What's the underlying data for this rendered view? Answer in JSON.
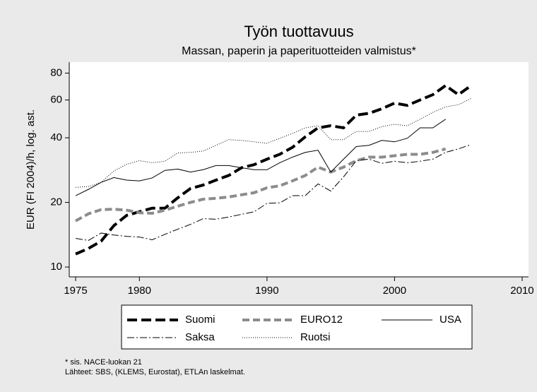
{
  "chart_data": {
    "type": "line",
    "title": "Työn tuottavuus",
    "subtitle": "Massan, paperin ja paperituotteiden valmistus*",
    "y_label": "EUR (FI 2004)/h, log. ast.",
    "notes": [
      "* sis. NACE-luokan 21",
      "Lähteet: SBS, (KLEMS, Eurostat), ETLAn laskelmat."
    ],
    "log_y": true,
    "legend": "bottom",
    "xlim": [
      1974.5,
      2010.5
    ],
    "xticks": [
      1975,
      1980,
      1990,
      2000,
      2010
    ],
    "ylim": [
      9,
      90
    ],
    "yticks": [
      10,
      20,
      40,
      60,
      80
    ],
    "x": [
      1975,
      1976,
      1977,
      1978,
      1979,
      1980,
      1981,
      1982,
      1983,
      1984,
      1985,
      1986,
      1987,
      1988,
      1989,
      1990,
      1991,
      1992,
      1993,
      1994,
      1995,
      1996,
      1997,
      1998,
      1999,
      2000,
      2001,
      2002,
      2003,
      2004,
      2005,
      2006
    ],
    "series": [
      {
        "name": "Suomi",
        "color": "#000000",
        "width": 4,
        "dash": "14 6",
        "values": [
          11.5,
          12.2,
          13.2,
          15.6,
          17.4,
          18.1,
          18.8,
          18.8,
          21,
          23.2,
          24.1,
          25.4,
          26.7,
          29,
          30,
          31.8,
          33.5,
          36.1,
          40.4,
          44.5,
          45.5,
          44.5,
          51,
          52,
          54.6,
          58,
          56.6,
          60,
          63.5,
          70,
          63.5,
          70
        ]
      },
      {
        "name": "EURO12",
        "color": "#8c8c8c",
        "width": 4,
        "dash": "10 5",
        "values": [
          16.4,
          17.7,
          18.5,
          18.6,
          18.4,
          17.9,
          17.8,
          18.4,
          19.2,
          20,
          20.7,
          20.9,
          21.2,
          21.7,
          22.2,
          23.4,
          23.9,
          25.2,
          26.7,
          29.2,
          27.7,
          29.2,
          31.3,
          32.5,
          32.5,
          33,
          33.5,
          33.5,
          34.2,
          35.5,
          null,
          null
        ]
      },
      {
        "name": "USA",
        "color": "#000000",
        "width": 1,
        "dash": "none",
        "values": [
          21.5,
          23,
          24.8,
          26.1,
          25.4,
          25.2,
          26,
          28.2,
          28.6,
          27.7,
          28.4,
          29.7,
          29.7,
          29,
          28.4,
          28.4,
          30.6,
          32.5,
          34.2,
          35,
          27.7,
          31.8,
          36.4,
          36.9,
          38.9,
          38.3,
          39.8,
          44.5,
          44.5,
          48.8,
          null,
          null
        ]
      },
      {
        "name": "Saksa",
        "color": "#000000",
        "width": 1,
        "dash": "10 3 2 3",
        "values": [
          13.6,
          13.3,
          14.4,
          14.1,
          13.9,
          13.8,
          13.4,
          14.2,
          15,
          15.8,
          16.8,
          16.7,
          17.1,
          17.6,
          18.1,
          19.8,
          19.9,
          21.5,
          21.5,
          24.4,
          22.6,
          26.3,
          31.3,
          31.8,
          30.4,
          31.1,
          30.6,
          31.1,
          31.8,
          34.2,
          35.5,
          37.2
        ]
      },
      {
        "name": "Ruotsi",
        "color": "#000000",
        "width": 1,
        "dash": "1 2",
        "values": [
          23.5,
          23.7,
          24.8,
          28,
          30.1,
          31.3,
          30.6,
          31.1,
          34,
          34.2,
          34.7,
          36.9,
          39.2,
          38.9,
          38.3,
          37.7,
          39.8,
          41.9,
          44.5,
          45.5,
          39.2,
          39.2,
          42.8,
          42.8,
          45.1,
          46.2,
          45.5,
          48.8,
          52.5,
          55.7,
          57,
          61
        ]
      }
    ]
  }
}
